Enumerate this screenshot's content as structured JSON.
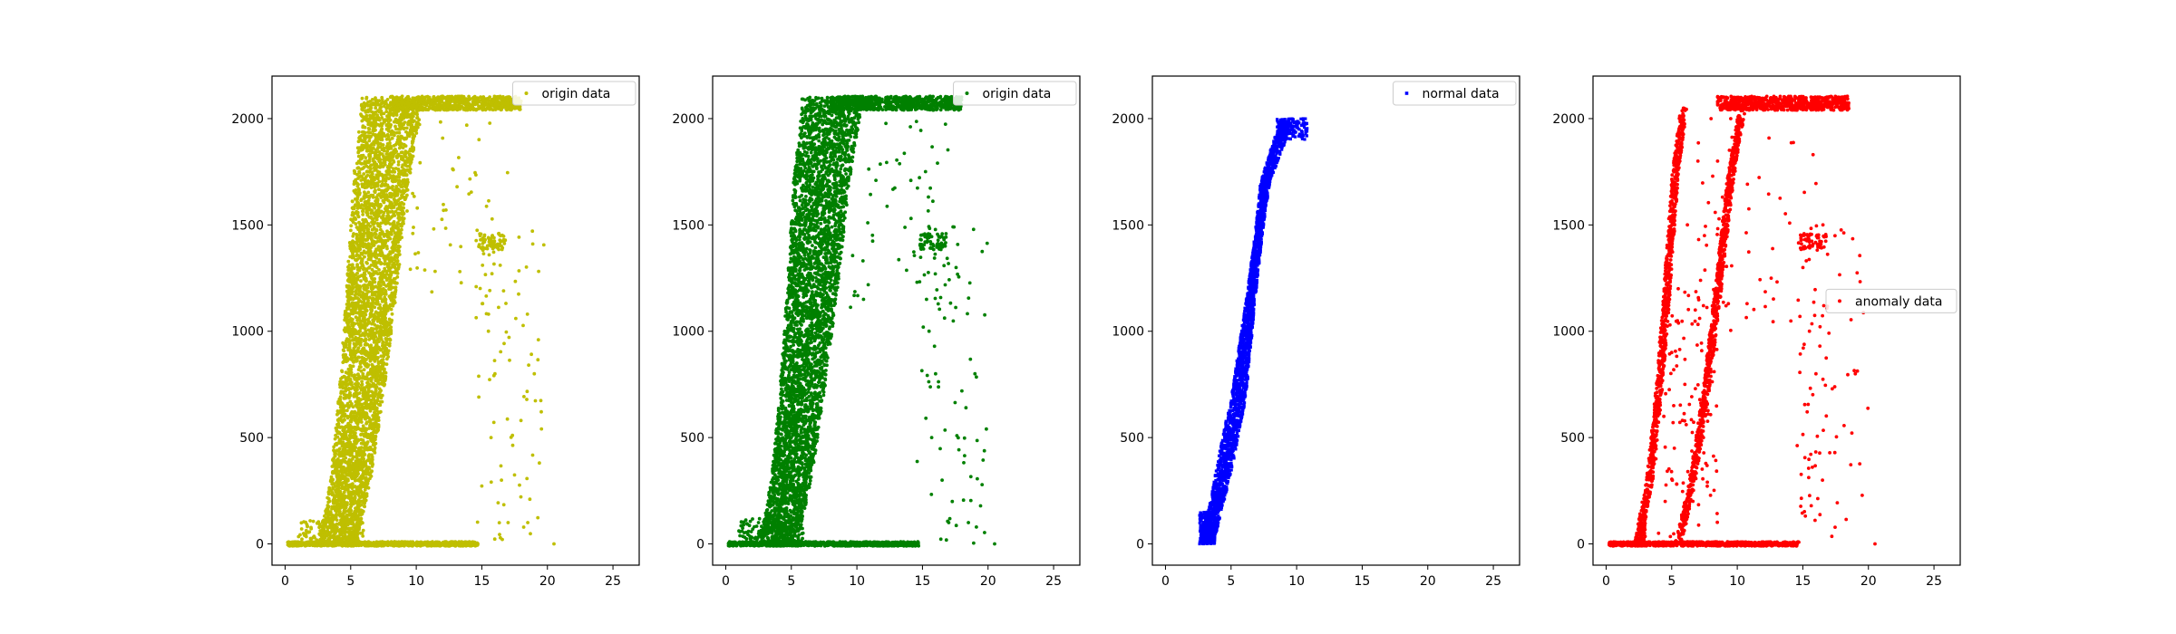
{
  "chart_data": [
    {
      "type": "scatter",
      "title": "",
      "xlabel": "",
      "ylabel": "",
      "xlim": [
        -1.0,
        27.0
      ],
      "ylim": [
        -100,
        2200
      ],
      "xticks": [
        0,
        5,
        10,
        15,
        20,
        25
      ],
      "yticks": [
        0,
        500,
        1000,
        1500,
        2000
      ],
      "grid": false,
      "legend_position": "top-right",
      "series": [
        {
          "name": "origin data",
          "color": "#bfbf00",
          "marker": "dot",
          "curve": "all",
          "points": [
            [
              0.3,
              0
            ],
            [
              1.5,
              0
            ],
            [
              3.0,
              0
            ],
            [
              4.5,
              0
            ],
            [
              6.0,
              0
            ],
            [
              8.0,
              0
            ],
            [
              10.0,
              0
            ],
            [
              12.0,
              0
            ],
            [
              14.5,
              0
            ],
            [
              2.5,
              100
            ],
            [
              4.0,
              300
            ],
            [
              5.0,
              500
            ],
            [
              6.0,
              900
            ],
            [
              7.0,
              1300
            ],
            [
              8.0,
              1800
            ],
            [
              9.0,
              2080
            ],
            [
              11.0,
              2100
            ],
            [
              13.0,
              2090
            ],
            [
              15.0,
              2070
            ],
            [
              16.5,
              2060
            ],
            [
              14.9,
              1430
            ],
            [
              15.2,
              1420
            ],
            [
              15.5,
              1440
            ],
            [
              16.2,
              1410
            ],
            [
              16.5,
              1400
            ],
            [
              15.5,
              1000
            ],
            [
              16.0,
              800
            ],
            [
              15.7,
              500
            ],
            [
              16.5,
              300
            ],
            [
              17.0,
              100
            ],
            [
              18.5,
              100
            ],
            [
              19.0,
              800
            ],
            [
              20.5,
              0
            ]
          ]
        }
      ]
    },
    {
      "type": "scatter",
      "title": "",
      "xlabel": "",
      "ylabel": "",
      "xlim": [
        -1.0,
        27.0
      ],
      "ylim": [
        -100,
        2200
      ],
      "xticks": [
        0,
        5,
        10,
        15,
        20,
        25
      ],
      "yticks": [
        0,
        500,
        1000,
        1500,
        2000
      ],
      "grid": false,
      "legend_position": "top-right",
      "series": [
        {
          "name": "origin data",
          "color": "#008000",
          "marker": "dot",
          "curve": "all",
          "points": [
            [
              0.3,
              0
            ],
            [
              1.5,
              0
            ],
            [
              3.0,
              0
            ],
            [
              4.5,
              0
            ],
            [
              6.0,
              0
            ],
            [
              8.0,
              0
            ],
            [
              10.0,
              0
            ],
            [
              12.0,
              0
            ],
            [
              14.5,
              0
            ],
            [
              2.5,
              100
            ],
            [
              4.0,
              300
            ],
            [
              5.0,
              500
            ],
            [
              6.0,
              900
            ],
            [
              7.0,
              1300
            ],
            [
              8.0,
              1800
            ],
            [
              9.0,
              2080
            ],
            [
              11.0,
              2100
            ],
            [
              13.0,
              2090
            ],
            [
              15.0,
              2070
            ],
            [
              16.5,
              2060
            ],
            [
              14.9,
              1430
            ],
            [
              15.2,
              1420
            ],
            [
              15.5,
              1440
            ],
            [
              16.2,
              1410
            ],
            [
              16.5,
              1400
            ],
            [
              15.5,
              1000
            ],
            [
              16.0,
              800
            ],
            [
              15.7,
              500
            ],
            [
              16.5,
              300
            ],
            [
              17.0,
              100
            ],
            [
              18.5,
              100
            ],
            [
              19.0,
              800
            ],
            [
              20.5,
              0
            ]
          ]
        }
      ]
    },
    {
      "type": "scatter",
      "title": "",
      "xlabel": "",
      "ylabel": "",
      "xlim": [
        -1.0,
        27.0
      ],
      "ylim": [
        -100,
        2200
      ],
      "xticks": [
        0,
        5,
        10,
        15,
        20,
        25
      ],
      "yticks": [
        0,
        500,
        1000,
        1500,
        2000
      ],
      "grid": false,
      "legend_position": "top-right",
      "series": [
        {
          "name": "normal data",
          "color": "#0000ff",
          "marker": "square",
          "curve": "normal",
          "points": [
            [
              2.6,
              0
            ],
            [
              3.0,
              30
            ],
            [
              3.5,
              100
            ],
            [
              4.0,
              250
            ],
            [
              4.5,
              400
            ],
            [
              5.0,
              600
            ],
            [
              5.5,
              800
            ],
            [
              6.0,
              1000
            ],
            [
              6.5,
              1250
            ],
            [
              7.0,
              1500
            ],
            [
              7.5,
              1700
            ],
            [
              8.0,
              1850
            ],
            [
              9.0,
              1980
            ],
            [
              10.5,
              2000
            ]
          ]
        }
      ]
    },
    {
      "type": "scatter",
      "title": "",
      "xlabel": "",
      "ylabel": "",
      "xlim": [
        -1.0,
        27.0
      ],
      "ylim": [
        -100,
        2200
      ],
      "xticks": [
        0,
        5,
        10,
        15,
        20,
        25
      ],
      "yticks": [
        0,
        500,
        1000,
        1500,
        2000
      ],
      "grid": false,
      "legend_position": "center-right",
      "series": [
        {
          "name": "anomaly data",
          "color": "#ff0000",
          "marker": "dot",
          "curve": "anomaly",
          "points": [
            [
              0.3,
              0
            ],
            [
              2.0,
              0
            ],
            [
              4.0,
              0
            ],
            [
              6.0,
              0
            ],
            [
              8.0,
              0
            ],
            [
              10.0,
              0
            ],
            [
              12.0,
              0
            ],
            [
              14.5,
              0
            ],
            [
              2.5,
              50
            ],
            [
              3.2,
              200
            ],
            [
              3.8,
              400
            ],
            [
              4.4,
              600
            ],
            [
              5.0,
              900
            ],
            [
              5.5,
              1200
            ],
            [
              6.2,
              1500
            ],
            [
              7.0,
              1800
            ],
            [
              8.0,
              2000
            ],
            [
              4.0,
              50
            ],
            [
              4.5,
              200
            ],
            [
              5.2,
              450
            ],
            [
              6.0,
              750
            ],
            [
              6.8,
              1100
            ],
            [
              7.5,
              1450
            ],
            [
              8.5,
              1800
            ],
            [
              9.5,
              2000
            ],
            [
              8.5,
              2080
            ],
            [
              10.0,
              2100
            ],
            [
              12.0,
              2090
            ],
            [
              14.0,
              2080
            ],
            [
              16.0,
              2070
            ],
            [
              18.0,
              2060
            ],
            [
              14.9,
              1430
            ],
            [
              15.5,
              1420
            ],
            [
              16.2,
              1410
            ],
            [
              15.5,
              1000
            ],
            [
              16.0,
              800
            ],
            [
              16.5,
              300
            ],
            [
              19.0,
              800
            ],
            [
              20.5,
              0
            ]
          ]
        }
      ]
    }
  ]
}
